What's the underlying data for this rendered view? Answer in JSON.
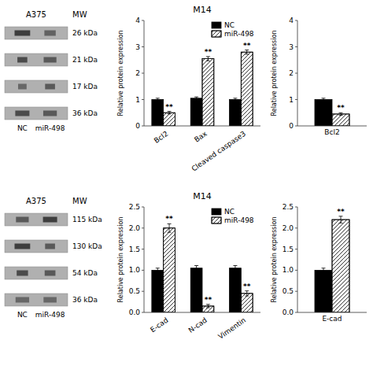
{
  "chart_data": [
    {
      "type": "blot",
      "title": "A375",
      "ylabel": "MW",
      "categories": [
        "26 kDa",
        "21 kDa",
        "17 kDa",
        "36 kDa"
      ],
      "series": [
        {
          "name": "NC",
          "values": [
            0.55,
            0.35,
            0.3,
            0.5
          ],
          "colors": [
            "#2a2a2a",
            "#3a3a3a",
            "#5a5a5a",
            "#3a3a3a"
          ]
        },
        {
          "name": "miR-498",
          "values": [
            0.4,
            0.45,
            0.35,
            0.48
          ],
          "colors": [
            "#555555",
            "#4a4a4a",
            "#4a4a4a",
            "#4a4a4a"
          ]
        }
      ],
      "color": "#b0b0b0"
    },
    {
      "type": "bar",
      "title": "M14",
      "ylabel": "Relative protein expression",
      "categories": [
        "Bcl2",
        "Bax",
        "Cleaved caspase3"
      ],
      "series": [
        {
          "name": "NC",
          "color": "#000000",
          "values": [
            1.0,
            1.05,
            1.0
          ],
          "errors": [
            0.05,
            0.05,
            0.05
          ]
        },
        {
          "name": "miR-498",
          "color": "#ffffff",
          "values": [
            0.5,
            2.55,
            2.8
          ],
          "errors": [
            0.05,
            0.08,
            0.08
          ],
          "annotations": [
            "**",
            "**",
            "**"
          ]
        }
      ],
      "ylim": [
        0,
        4
      ],
      "yticks": [
        0,
        1,
        2,
        3,
        4
      ],
      "legend": "upper right"
    },
    {
      "type": "bar",
      "ylabel": "Relative protein expression",
      "categories": [
        "Bcl2"
      ],
      "series": [
        {
          "color": "#000000",
          "values": [
            1.0
          ],
          "errors": [
            0.05
          ]
        },
        {
          "color": "#ffffff",
          "values": [
            0.45
          ],
          "errors": [
            0.05
          ],
          "annotations": [
            "**"
          ]
        }
      ],
      "ylim": [
        0,
        4
      ],
      "yticks": [
        0,
        1,
        2,
        3,
        4
      ]
    },
    {
      "type": "blot",
      "title": "A375",
      "ylabel": "MW",
      "categories": [
        "115 kDa",
        "130 kDa",
        "54 kDa",
        "36 kDa"
      ],
      "series": [
        {
          "name": "NC",
          "values": [
            0.45,
            0.55,
            0.4,
            0.48
          ],
          "colors": [
            "#4a4a4a",
            "#2a2a2a",
            "#3a3a3a",
            "#5a5a5a"
          ]
        },
        {
          "name": "miR-498",
          "values": [
            0.5,
            0.35,
            0.38,
            0.46
          ],
          "colors": [
            "#2a2a2a",
            "#4a4a4a",
            "#4a4a4a",
            "#5a5a5a"
          ]
        }
      ],
      "color": "#b0b0b0"
    },
    {
      "type": "bar",
      "title": "M14",
      "ylabel": "Relative protein expression",
      "categories": [
        "E-cad",
        "N-cad",
        "Vimentin"
      ],
      "series": [
        {
          "name": "NC",
          "color": "#000000",
          "values": [
            1.0,
            1.05,
            1.05
          ],
          "errors": [
            0.05,
            0.06,
            0.06
          ]
        },
        {
          "name": "miR-498",
          "color": "#ffffff",
          "values": [
            2.0,
            0.15,
            0.45
          ],
          "errors": [
            0.1,
            0.04,
            0.06
          ],
          "annotations": [
            "**",
            "**",
            "**"
          ]
        }
      ],
      "ylim": [
        0,
        2.5
      ],
      "yticks": [
        {
          "value": 0,
          "label": "0.0"
        },
        0.5,
        {
          "value": 1,
          "label": "1.0"
        },
        1.5,
        {
          "value": 2,
          "label": "2.0"
        },
        2.5
      ],
      "legend": "upper right"
    },
    {
      "type": "bar",
      "ylabel": "Relative protein expression",
      "categories": [
        "E-cad"
      ],
      "series": [
        {
          "color": "#000000",
          "values": [
            1.0
          ],
          "errors": [
            0.05
          ]
        },
        {
          "color": "#ffffff",
          "values": [
            2.2
          ],
          "errors": [
            0.08
          ],
          "annotations": [
            "**"
          ]
        }
      ],
      "ylim": [
        0,
        2.5
      ],
      "yticks": [
        {
          "value": 0,
          "label": "0.0"
        },
        0.5,
        {
          "value": 1,
          "label": "1.0"
        },
        1.5,
        {
          "value": 2,
          "label": "2.0"
        },
        2.5
      ]
    }
  ]
}
